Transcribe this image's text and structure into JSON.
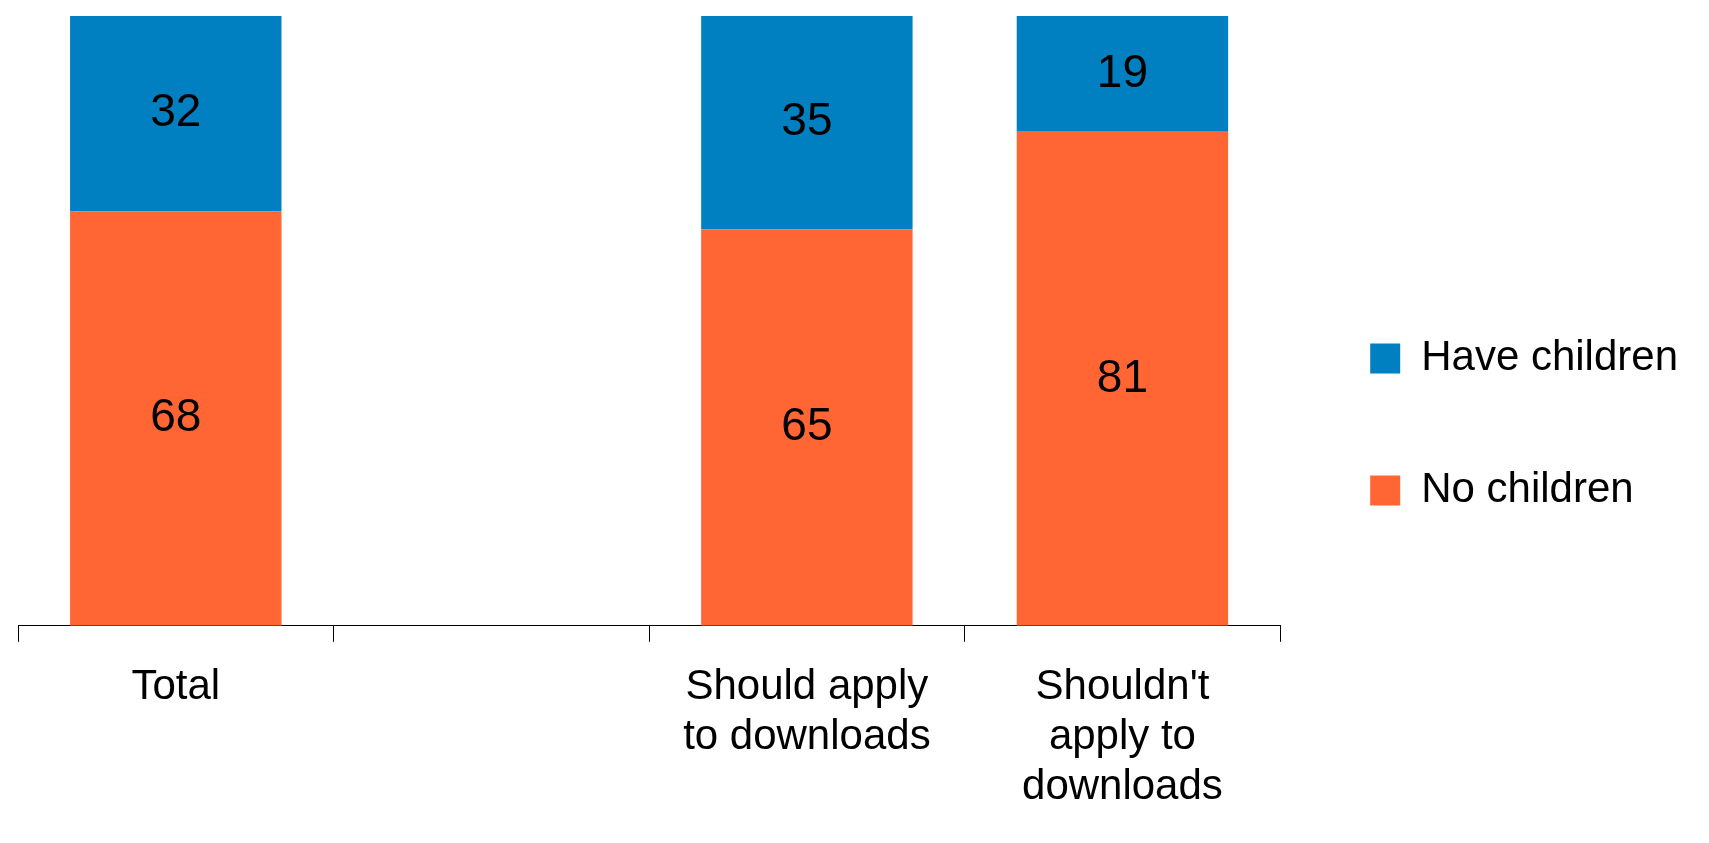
{
  "chart_data": {
    "type": "bar",
    "stacked": true,
    "data_labels": true,
    "legend": "right",
    "grid": false,
    "categories": [
      "Total",
      null,
      "Should apply to downloads",
      "Shouldn't apply to downloads"
    ],
    "series": [
      {
        "name": "No children",
        "color": "#ff6633",
        "values": [
          68,
          null,
          65,
          81
        ]
      },
      {
        "name": "Have children",
        "color": "#0080c0",
        "values": [
          32,
          null,
          35,
          19
        ]
      }
    ]
  }
}
